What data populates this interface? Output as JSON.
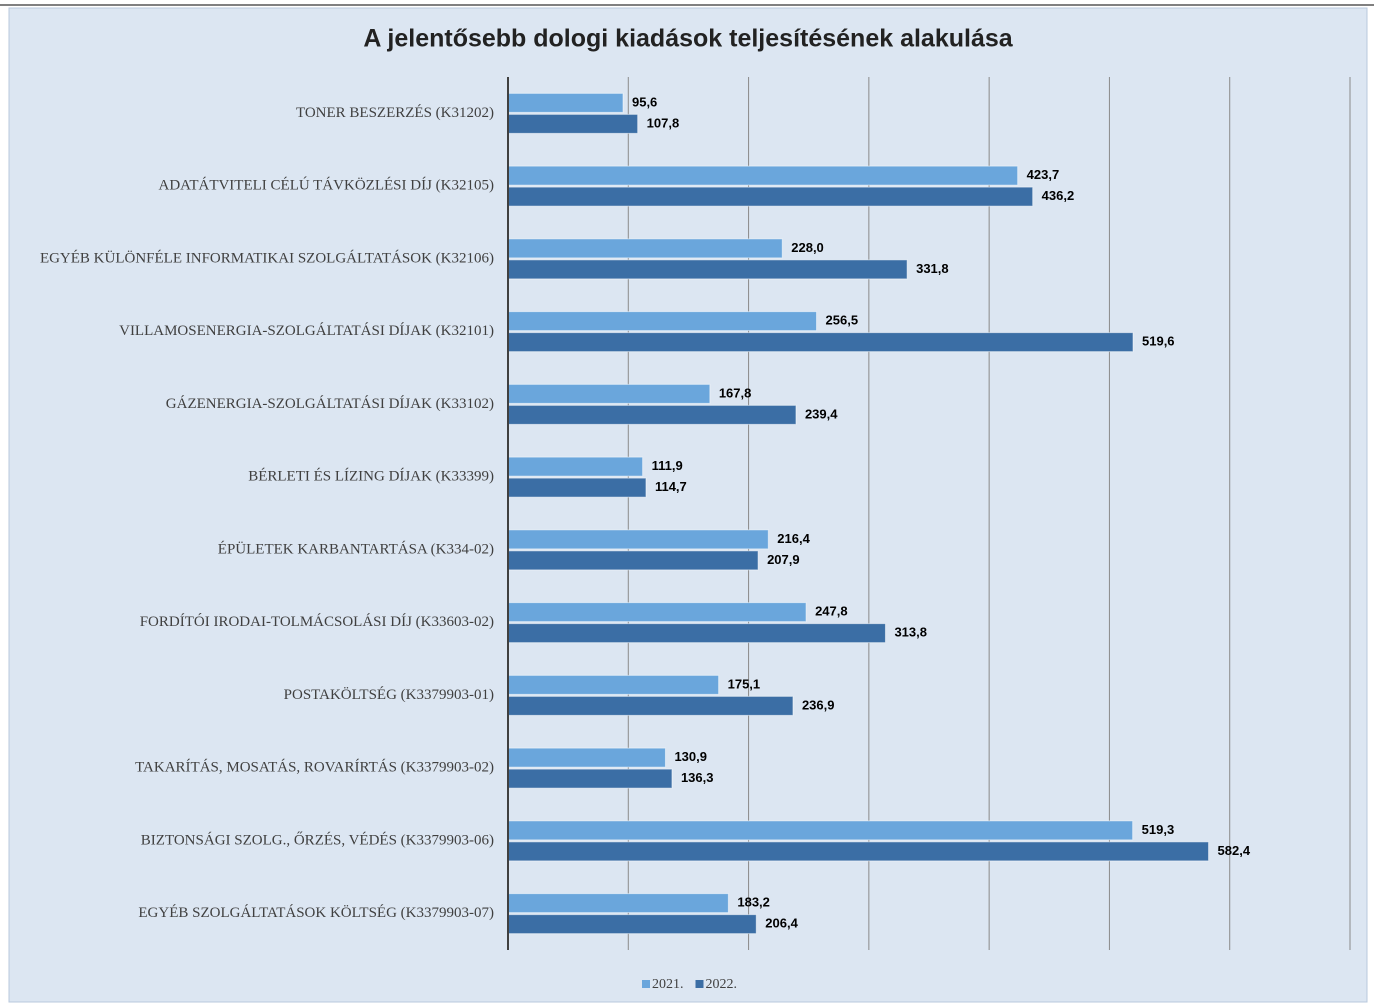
{
  "chart_data": {
    "type": "barh",
    "title": "A jelentősebb dologi kiadások teljesítésének alakulása",
    "categories": [
      "TONER BESZERZÉS (K31202)",
      "ADATÁTVITELI CÉLÚ TÁVKÖZLÉSI DÍJ (K32105)",
      "EGYÉB KÜLÖNFÉLE INFORMATIKAI SZOLGÁLTATÁSOK (K32106)",
      "VILLAMOSENERGIA-SZOLGÁLTATÁSI DÍJAK (K32101)",
      "GÁZENERGIA-SZOLGÁLTATÁSI DÍJAK (K33102)",
      "BÉRLETI ÉS LÍZING DÍJAK (K33399)",
      "ÉPÜLETEK KARBANTARTÁSA (K334-02)",
      "FORDÍTÓI IRODAI-TOLMÁCSOLÁSI DÍJ (K33603-02)",
      "POSTAKÖLTSÉG (K3379903-01)",
      "TAKARÍTÁS, MOSATÁS, ROVARÍRTÁS (K3379903-02)",
      "BIZTONSÁGI SZOLG., ŐRZÉS, VÉDÉS (K3379903-06)",
      "EGYÉB SZOLGÁLTATÁSOK KÖLTSÉG (K3379903-07)"
    ],
    "series": [
      {
        "name": "2021.",
        "color": "#6aa6dc",
        "values": [
          95.6,
          423.7,
          228.0,
          256.5,
          167.8,
          111.9,
          216.4,
          247.8,
          175.1,
          130.9,
          519.3,
          183.2
        ],
        "value_labels": [
          "95,6",
          "423,7",
          "228,0",
          "256,5",
          "167,8",
          "111,9",
          "216,4",
          "247,8",
          "175,1",
          "130,9",
          "519,3",
          "183,2"
        ]
      },
      {
        "name": "2022.",
        "color": "#3b6ea5",
        "values": [
          107.8,
          436.2,
          331.8,
          519.6,
          239.4,
          114.7,
          207.9,
          313.8,
          236.9,
          136.3,
          582.4,
          206.4
        ],
        "value_labels": [
          "107,8",
          "436,2",
          "331,8",
          "519,6",
          "239,4",
          "114,7",
          "207,9",
          "313,8",
          "236,9",
          "136,3",
          "582,4",
          "206,4"
        ]
      }
    ],
    "xlim": [
      0,
      700
    ],
    "xticks": [
      0,
      100,
      200,
      300,
      400,
      500,
      600,
      700
    ],
    "grid": true,
    "legend": "bottom"
  }
}
